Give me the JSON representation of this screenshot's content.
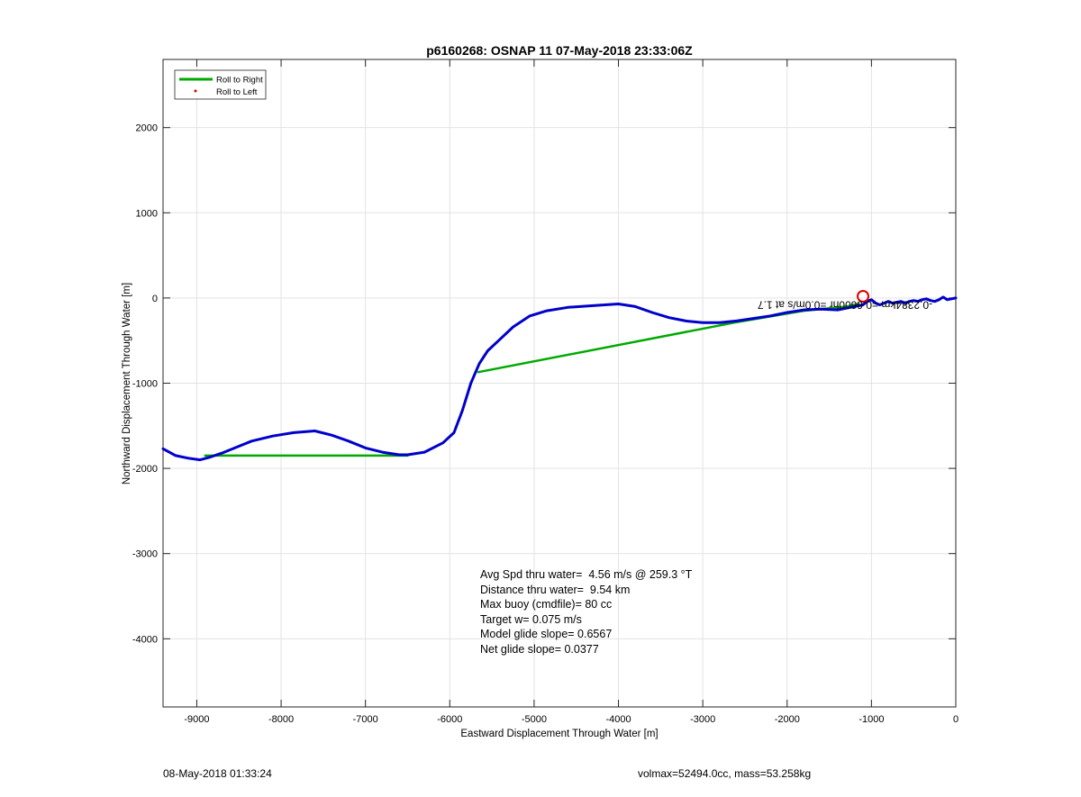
{
  "chart_data": {
    "type": "line",
    "title": "p6160268: OSNAP 11 07-May-2018 23:33:06Z",
    "xlabel": "Eastward Displacement Through Water [m]",
    "ylabel": "Northward Displacement Through Water [m]",
    "xlim": [
      -9400,
      0
    ],
    "ylim": [
      -4800,
      2800
    ],
    "xticks": [
      -9000,
      -8000,
      -7000,
      -6000,
      -5000,
      -4000,
      -3000,
      -2000,
      -1000,
      0
    ],
    "yticks": [
      -4000,
      -3000,
      -2000,
      -1000,
      0,
      1000,
      2000
    ],
    "grid": true,
    "legend_placement": "top-left",
    "legend": [
      "Roll to Right",
      "Roll to Left"
    ],
    "series": [
      {
        "name": "",
        "color": "#0000cc",
        "x": [
          -9400,
          -9250,
          -9100,
          -8960,
          -8850,
          -8700,
          -8550,
          -8350,
          -8100,
          -7850,
          -7600,
          -7400,
          -7200,
          -7000,
          -6800,
          -6600,
          -6500,
          -6300,
          -6080,
          -5950,
          -5850,
          -5750,
          -5650,
          -5550,
          -5400,
          -5250,
          -5050,
          -4850,
          -4600,
          -4300,
          -4000,
          -3800,
          -3600,
          -3400,
          -3200,
          -3000,
          -2800,
          -2600,
          -2400,
          -2200,
          -2000,
          -1800,
          -1600,
          -1400,
          -1250,
          -1100,
          -1050,
          -1000,
          -950,
          -900,
          -850,
          -800,
          -750,
          -700,
          -650,
          -600,
          -550,
          -500,
          -450,
          -400,
          -350,
          -300,
          -250,
          -200,
          -150,
          -100,
          -50,
          0
        ],
        "y": [
          -1770,
          -1850,
          -1880,
          -1900,
          -1870,
          -1820,
          -1760,
          -1680,
          -1620,
          -1580,
          -1560,
          -1610,
          -1680,
          -1760,
          -1810,
          -1840,
          -1840,
          -1810,
          -1700,
          -1580,
          -1320,
          -1000,
          -770,
          -620,
          -480,
          -340,
          -210,
          -150,
          -110,
          -90,
          -70,
          -100,
          -170,
          -230,
          -270,
          -290,
          -290,
          -270,
          -240,
          -210,
          -170,
          -140,
          -130,
          -140,
          -110,
          -80,
          -40,
          -20,
          -60,
          -80,
          -60,
          -40,
          -60,
          -50,
          -40,
          -60,
          -40,
          -30,
          -40,
          -20,
          -10,
          -30,
          -40,
          -20,
          10,
          -20,
          -10,
          0
        ]
      },
      {
        "name": "",
        "color": "#00aa00",
        "x": [
          -8900,
          -6500
        ],
        "y": [
          -1850,
          -1850
        ]
      },
      {
        "name": "",
        "color": "#00aa00",
        "x": [
          -5660,
          -2630,
          -1800,
          -1300,
          -1150
        ],
        "y": [
          -870,
          -290,
          -150,
          -100,
          -70
        ]
      }
    ],
    "annotations": {
      "marker_point": {
        "x": -1100,
        "y": 20
      },
      "mirrored_label": "-0.2384km =0.6600hr =0.0m/s at 1.7"
    },
    "stats": [
      "Avg Spd thru water=  4.56 m/s @ 259.3 °T",
      "Distance thru water=  9.54 km",
      "Max buoy (cmdfile)= 80 cc",
      "Target w= 0.075 m/s",
      "Model glide slope= 0.6567",
      "Net glide slope= 0.0377"
    ]
  },
  "footer": {
    "left": "08-May-2018 01:33:24",
    "right": "volmax=52494.0cc, mass=53.258kg"
  }
}
